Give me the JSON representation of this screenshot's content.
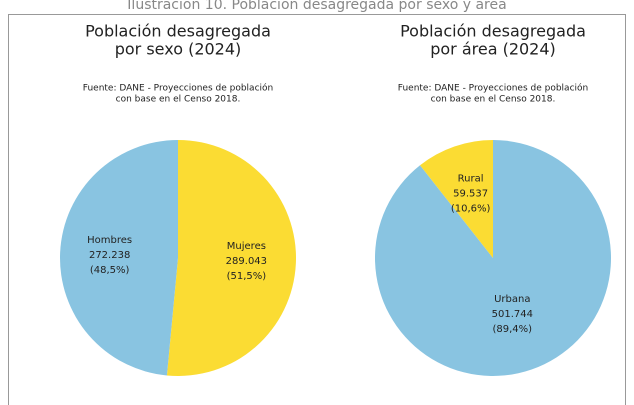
{
  "caption": "Ilustración 10. Población desagregada por sexo y área",
  "chart_data": [
    {
      "type": "pie",
      "title": [
        "Población desagregada",
        "por sexo (2024)"
      ],
      "subtitle": [
        "Fuente: DANE - Proyecciones de población",
        "con base en el Censo 2018."
      ],
      "categories": [
        "Mujeres",
        "Hombres"
      ],
      "values": [
        289043,
        272238
      ],
      "value_labels": [
        "289.043",
        "272.238"
      ],
      "percent_labels": [
        "(51,5%)",
        "(48,5%)"
      ],
      "colors": [
        "#fbdc33",
        "#89c4e1"
      ]
    },
    {
      "type": "pie",
      "title": [
        "Población desagregada",
        "por área (2024)"
      ],
      "subtitle": [
        "Fuente: DANE - Proyecciones de población",
        "con base en el Censo 2018."
      ],
      "categories": [
        "Urbana",
        "Rural"
      ],
      "values": [
        501744,
        59537
      ],
      "value_labels": [
        "501.744",
        "59.537"
      ],
      "percent_labels": [
        "(89,4%)",
        "(10,6%)"
      ],
      "colors": [
        "#89c4e1",
        "#fbdc33"
      ]
    }
  ]
}
